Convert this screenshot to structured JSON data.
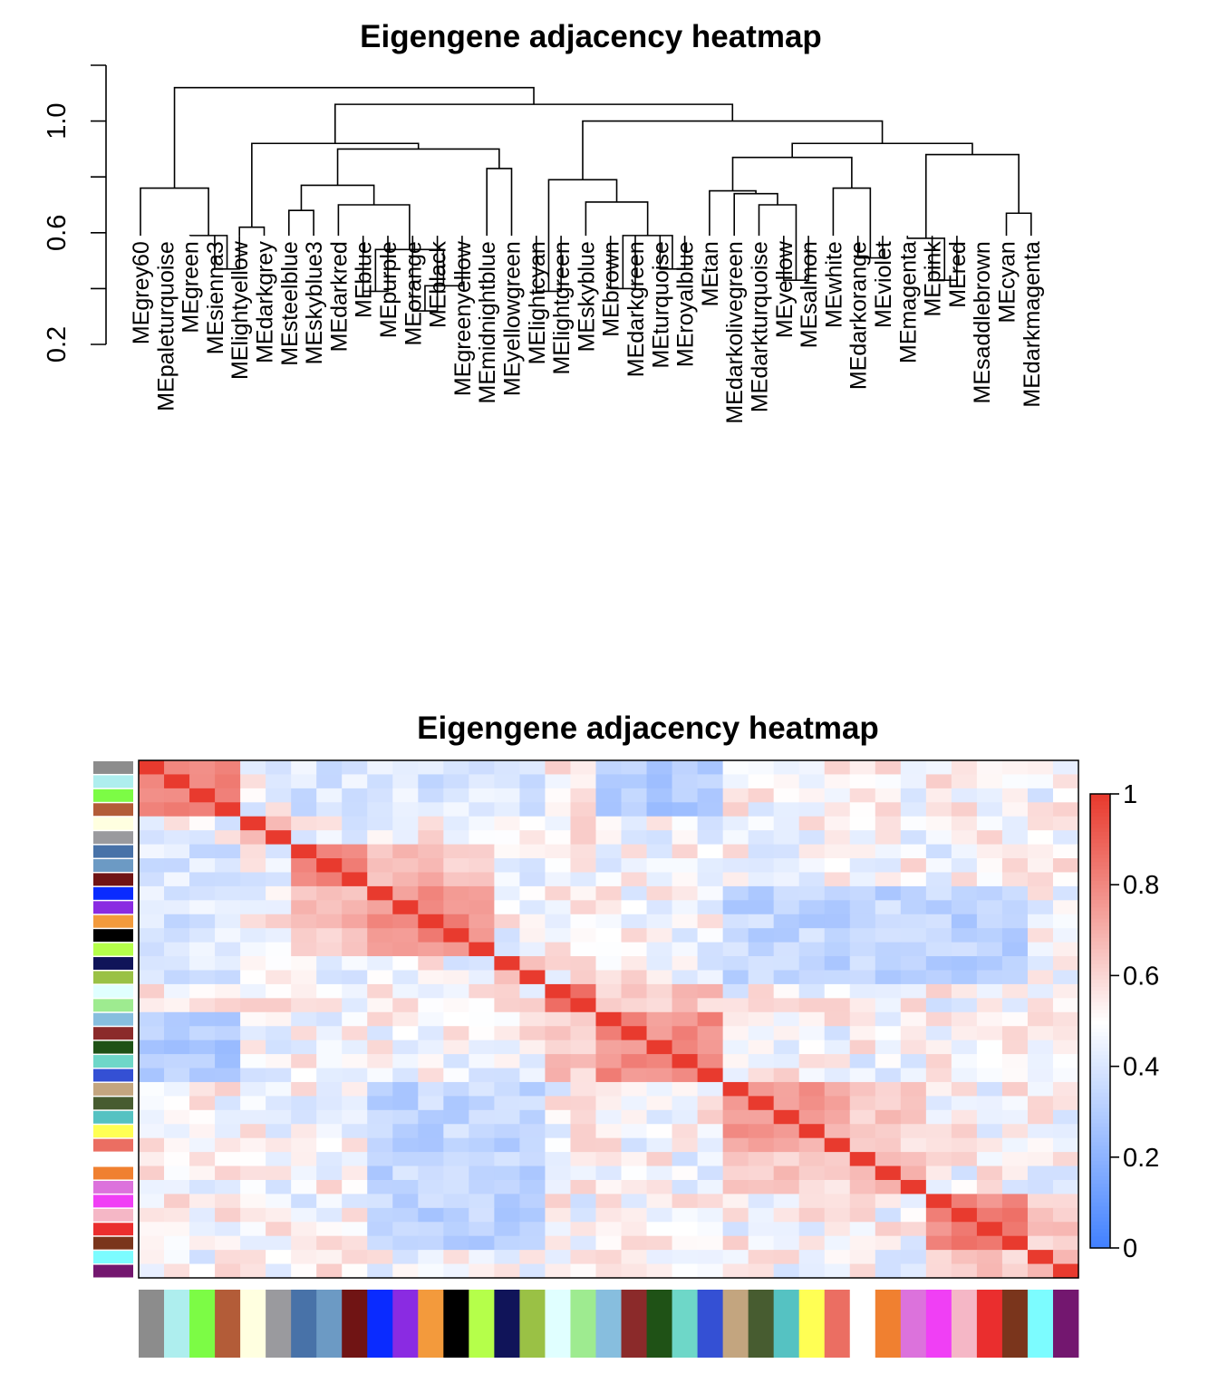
{
  "chart_data": [
    {
      "type": "dendrogram",
      "title": "Eigengene adjacency heatmap",
      "ylabel": "",
      "ylim": [
        0.2,
        1.2
      ],
      "y_ticks": [
        0.2,
        0.6,
        1.0
      ],
      "leaves": [
        "MEgrey60",
        "MEpaleturquoise",
        "MEgreen",
        "MEsienna3",
        "MElightyellow",
        "MEdarkgrey",
        "MEsteelblue",
        "MEskyblue3",
        "MEdarkred",
        "MEblue",
        "MEpurple",
        "MEorange",
        "MEblack",
        "MEgreenyellow",
        "MEmidnightblue",
        "MEyellowgreen",
        "MElightcyan",
        "MElightgreen",
        "MEskyblue",
        "MEbrown",
        "MEdarkgreen",
        "MEturquoise",
        "MEroyalblue",
        "MEtan",
        "MEdarkolivegreen",
        "MEdarkturquoise",
        "MEyellow",
        "MEsalmon",
        "MEwhite",
        "MEdarkorange",
        "MEviolet",
        "MEmagenta",
        "MEpink",
        "MEred",
        "MEsaddlebrown",
        "MEcyan",
        "MEdarkmagenta"
      ],
      "merges": [
        {
          "a": -12,
          "b": -13,
          "h": 0.32
        },
        {
          "a": -27,
          "b": -28,
          "h": 0.43
        },
        {
          "a": -33,
          "b": -34,
          "h": 0.43
        },
        {
          "a": -22,
          "b": -23,
          "h": 0.47
        },
        {
          "a": -30,
          "b": -31,
          "h": 0.51
        },
        {
          "a": -10,
          "b": -11,
          "h": 0.39
        },
        {
          "a": -20,
          "b": -21,
          "h": 0.4
        },
        {
          "a": -4,
          "b": -5,
          "h": 0.47
        },
        {
          "a": -17,
          "b": -18,
          "h": 0.39
        },
        {
          "a": -14,
          "b": 1,
          "h": 0.41
        },
        {
          "a": -3,
          "b": 8,
          "h": 0.59
        },
        {
          "a": -32,
          "b": 3,
          "h": 0.58
        },
        {
          "a": 7,
          "b": 4,
          "h": 0.59
        },
        {
          "a": 6,
          "b": 10,
          "h": 0.54
        },
        {
          "a": -7,
          "b": -8,
          "h": 0.68
        },
        {
          "a": -36,
          "b": -37,
          "h": 0.67
        },
        {
          "a": -5,
          "b": -6,
          "h": 0.62
        },
        {
          "a": -29,
          "b": 5,
          "h": 0.76
        },
        {
          "a": -26,
          "b": 2,
          "h": 0.7
        },
        {
          "a": -19,
          "b": 13,
          "h": 0.71
        },
        {
          "a": -9,
          "b": 14,
          "h": 0.7
        },
        {
          "a": -15,
          "b": -16,
          "h": 0.83
        },
        {
          "a": -1,
          "b": 11,
          "h": 0.76
        },
        {
          "a": -25,
          "b": 19,
          "h": 0.74
        },
        {
          "a": 15,
          "b": 21,
          "h": 0.77
        },
        {
          "a": -24,
          "b": 24,
          "h": 0.75
        },
        {
          "a": 12,
          "b": 16,
          "h": 0.88
        },
        {
          "a": 26,
          "b": 18,
          "h": 0.87
        },
        {
          "a": 9,
          "b": 20,
          "h": 0.79
        },
        {
          "a": 25,
          "b": 22,
          "h": 0.9
        },
        {
          "a": 28,
          "b": 27,
          "h": 0.92
        },
        {
          "a": 17,
          "b": 30,
          "h": 0.92
        },
        {
          "a": 29,
          "b": 31,
          "h": 1.0
        },
        {
          "a": 32,
          "b": 33,
          "h": 1.06
        },
        {
          "a": 23,
          "b": 34,
          "h": 1.12
        }
      ]
    },
    {
      "type": "heatmap",
      "title": "Eigengene adjacency heatmap",
      "xlabel": "",
      "ylabel": "",
      "colorbar": {
        "range": [
          0,
          1
        ],
        "ticks": [
          "0",
          "0.2",
          "0.4",
          "0.6",
          "0.8",
          "1"
        ],
        "low_color": "#3F7FFF",
        "mid_color": "#FFFFFF",
        "high_color": "#E83A2E"
      },
      "row_module_colors": [
        "#8C8C8C",
        "#AEEEEE",
        "#7CFC45",
        "#B35C38",
        "#FFFFE0",
        "#9A9A9E",
        "#4872A8",
        "#6C9AC4",
        "#701414",
        "#0A2BFF",
        "#8A2BE2",
        "#F39A3C",
        "#000000",
        "#B5FF4A",
        "#101459",
        "#9AC145",
        "#E0FFFF",
        "#9EEB90",
        "#87BEDE",
        "#8B2A2A",
        "#1F5216",
        "#6ED7C8",
        "#3450D4",
        "#C3A57F",
        "#475C30",
        "#55C2C2",
        "#FFFF54",
        "#EB6E62",
        "#FFFFFF",
        "#F08030",
        "#DC72DC",
        "#F03FF5",
        "#F5B7C6",
        "#EA2E2E",
        "#7A351C",
        "#7CFCFF",
        "#73176F"
      ],
      "col_module_colors": [
        "#8C8C8C",
        "#AEEEEE",
        "#7CFC45",
        "#B35C38",
        "#FFFFE0",
        "#9A9A9E",
        "#4872A8",
        "#6C9AC4",
        "#701414",
        "#0A2BFF",
        "#8A2BE2",
        "#F39A3C",
        "#000000",
        "#B5FF4A",
        "#101459",
        "#9AC145",
        "#E0FFFF",
        "#9EEB90",
        "#87BEDE",
        "#8B2A2A",
        "#1F5216",
        "#6ED7C8",
        "#3450D4",
        "#C3A57F",
        "#475C30",
        "#55C2C2",
        "#FFFF54",
        "#EB6E62",
        "#FFFFFF",
        "#F08030",
        "#DC72DC",
        "#F03FF5",
        "#F5B7C6",
        "#EA2E2E",
        "#7A351C",
        "#7CFCFF",
        "#73176F"
      ],
      "blocks": [
        {
          "rows": [
            0,
            3
          ],
          "cols": [
            0,
            3
          ],
          "value": 0.85
        },
        {
          "rows": [
            4,
            5
          ],
          "cols": [
            4,
            5
          ],
          "value": 0.72
        },
        {
          "rows": [
            6,
            8
          ],
          "cols": [
            6,
            8
          ],
          "value": 0.78
        },
        {
          "rows": [
            9,
            13
          ],
          "cols": [
            9,
            13
          ],
          "value": 0.8
        },
        {
          "rows": [
            6,
            13
          ],
          "cols": [
            6,
            13
          ],
          "value": 0.66
        },
        {
          "rows": [
            14,
            15
          ],
          "cols": [
            14,
            15
          ],
          "value": 0.66
        },
        {
          "rows": [
            16,
            17
          ],
          "cols": [
            16,
            17
          ],
          "value": 0.87
        },
        {
          "rows": [
            18,
            22
          ],
          "cols": [
            18,
            22
          ],
          "value": 0.79
        },
        {
          "rows": [
            16,
            22
          ],
          "cols": [
            16,
            22
          ],
          "value": 0.64
        },
        {
          "rows": [
            23,
            27
          ],
          "cols": [
            23,
            27
          ],
          "value": 0.73
        },
        {
          "rows": [
            28,
            30
          ],
          "cols": [
            28,
            30
          ],
          "value": 0.7
        },
        {
          "rows": [
            23,
            30
          ],
          "cols": [
            23,
            30
          ],
          "value": 0.62
        },
        {
          "rows": [
            31,
            34
          ],
          "cols": [
            31,
            34
          ],
          "value": 0.8
        },
        {
          "rows": [
            35,
            36
          ],
          "cols": [
            35,
            36
          ],
          "value": 0.72
        },
        {
          "rows": [
            31,
            36
          ],
          "cols": [
            31,
            36
          ],
          "value": 0.62
        },
        {
          "rows": [
            9,
            15
          ],
          "cols": [
            23,
            30
          ],
          "value": 0.34
        },
        {
          "rows": [
            0,
            3
          ],
          "cols": [
            18,
            22
          ],
          "value": 0.3
        },
        {
          "rows": [
            9,
            15
          ],
          "cols": [
            31,
            34
          ],
          "value": 0.33
        },
        {
          "rows": [
            6,
            15
          ],
          "cols": [
            0,
            3
          ],
          "value": 0.4
        }
      ],
      "diagonal_value": 1.0,
      "background_value": 0.5
    }
  ]
}
